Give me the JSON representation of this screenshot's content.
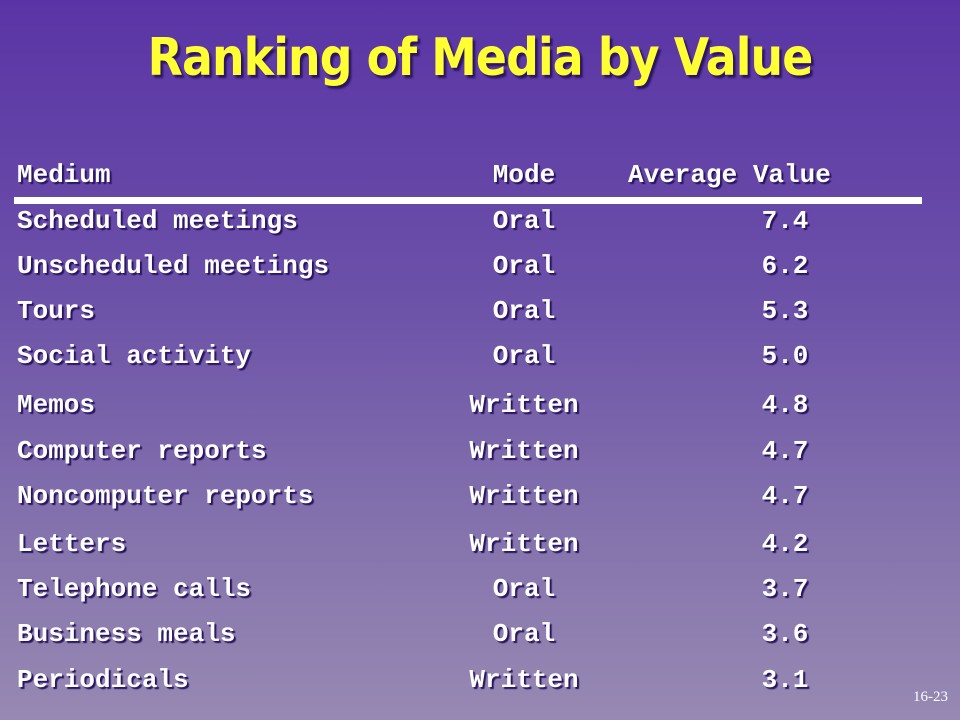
{
  "slide": {
    "title": "Ranking of Media by Value",
    "page_number": "16-23"
  },
  "table": {
    "headers": {
      "medium": "Medium",
      "mode": "Mode",
      "value": "Average Value"
    },
    "rows": [
      {
        "medium": "Scheduled meetings",
        "mode": "Oral",
        "value": "7.4"
      },
      {
        "medium": "Unscheduled meetings",
        "mode": "Oral",
        "value": "6.2"
      },
      {
        "medium": "Tours",
        "mode": "Oral",
        "value": "5.3"
      },
      {
        "medium": "Social activity",
        "mode": "Oral",
        "value": "5.0"
      },
      {
        "medium": "Memos",
        "mode": "Written",
        "value": "4.8"
      },
      {
        "medium": "Computer reports",
        "mode": "Written",
        "value": "4.7"
      },
      {
        "medium": "Noncomputer reports",
        "mode": "Written",
        "value": "4.7"
      },
      {
        "medium": "Letters",
        "mode": "Written",
        "value": "4.2"
      },
      {
        "medium": "Telephone calls",
        "mode": "Oral",
        "value": "3.7"
      },
      {
        "medium": "Business meals",
        "mode": "Oral",
        "value": "3.6"
      },
      {
        "medium": "Periodicals",
        "mode": "Written",
        "value": "3.1"
      }
    ]
  }
}
